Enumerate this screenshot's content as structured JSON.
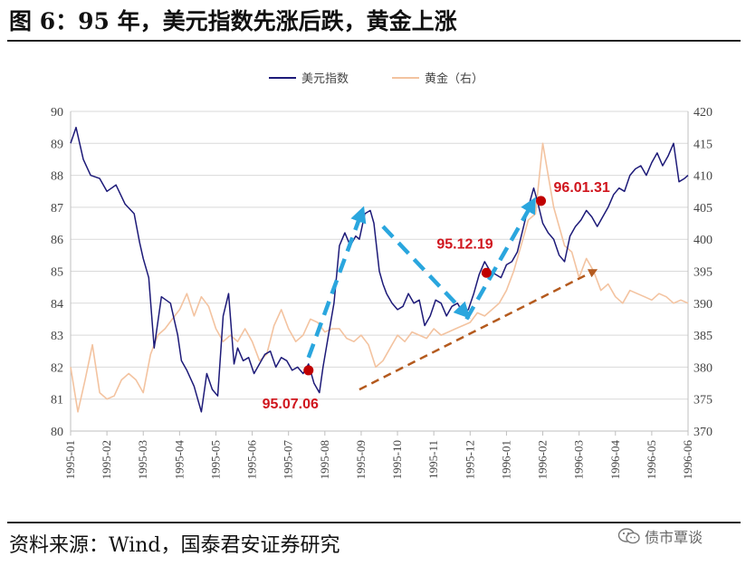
{
  "header": {
    "title": "图 6：95 年，美元指数先涨后跌，黄金上涨"
  },
  "footer": {
    "source": "资料来源：Wind，国泰君安证券研究",
    "badge": "债市覃谈"
  },
  "colors": {
    "usd": "#1d1a78",
    "gold": "#f3c3a0",
    "arrow_up": "#2aa6de",
    "arrow_trend": "#b45a1e",
    "marker": "#c00000",
    "annotation": "#d0161e"
  },
  "icons": {
    "badge_icon": "wechat-icon"
  },
  "chart_data": {
    "type": "line",
    "title": "",
    "xlabel": "",
    "ylabel": "",
    "ylim": [
      80,
      90
    ],
    "y2lim": [
      370,
      420
    ],
    "yticks": [
      "80",
      "81",
      "82",
      "83",
      "84",
      "85",
      "86",
      "87",
      "88",
      "89",
      "90"
    ],
    "y2ticks": [
      "370",
      "375",
      "380",
      "385",
      "390",
      "395",
      "400",
      "405",
      "410",
      "415",
      "420"
    ],
    "x_ticks": [
      "1995-01",
      "1995-02",
      "1995-03",
      "1995-04",
      "1995-05",
      "1995-06",
      "1995-07",
      "1995-08",
      "1995-09",
      "1995-10",
      "1995-11",
      "1995-12",
      "1996-01",
      "1996-02",
      "1996-03",
      "1996-04",
      "1996-05",
      "1996-06"
    ],
    "legend": {
      "position": "top-center",
      "entries": [
        "美元指数",
        "黄金（右）"
      ]
    },
    "grid": true,
    "series": [
      {
        "name": "美元指数",
        "axis": "left",
        "x": [
          0,
          0.15,
          0.35,
          0.55,
          0.8,
          1.0,
          1.25,
          1.5,
          1.75,
          1.9,
          2.0,
          2.15,
          2.3,
          2.5,
          2.75,
          2.95,
          3.05,
          3.2,
          3.4,
          3.6,
          3.75,
          3.9,
          4.05,
          4.2,
          4.35,
          4.5,
          4.6,
          4.75,
          4.9,
          5.05,
          5.2,
          5.35,
          5.5,
          5.65,
          5.8,
          5.95,
          6.1,
          6.25,
          6.4,
          6.55,
          6.7,
          6.85,
          6.95,
          7.1,
          7.25,
          7.4,
          7.55,
          7.7,
          7.85,
          7.95,
          8.1,
          8.25,
          8.35,
          8.5,
          8.6,
          8.7,
          8.85,
          9.0,
          9.15,
          9.3,
          9.45,
          9.6,
          9.75,
          9.9,
          10.05,
          10.2,
          10.35,
          10.5,
          10.65,
          10.8,
          10.95,
          11.1,
          11.25,
          11.4,
          11.55,
          11.7,
          11.85,
          12.0,
          12.15,
          12.3,
          12.45,
          12.6,
          12.75,
          12.85,
          13.0,
          13.15,
          13.3,
          13.45,
          13.6,
          13.75,
          13.9,
          14.05,
          14.2,
          14.35,
          14.5,
          14.65,
          14.8,
          14.95,
          15.1,
          15.25,
          15.4,
          15.55,
          15.7,
          15.85,
          16.0,
          16.15,
          16.3,
          16.45,
          16.6,
          16.75,
          16.9,
          17.0
        ],
        "values": [
          89.0,
          89.5,
          88.5,
          88.0,
          87.9,
          87.5,
          87.7,
          87.1,
          86.8,
          85.9,
          85.4,
          84.8,
          82.6,
          84.2,
          84.0,
          83.0,
          82.2,
          81.9,
          81.4,
          80.6,
          81.8,
          81.3,
          81.1,
          83.6,
          84.3,
          82.1,
          82.6,
          82.2,
          82.3,
          81.8,
          82.1,
          82.4,
          82.5,
          82.0,
          82.3,
          82.2,
          81.9,
          82.0,
          81.8,
          82.1,
          81.5,
          81.2,
          82.0,
          83.0,
          84.0,
          85.8,
          86.2,
          85.8,
          86.1,
          86.0,
          86.8,
          86.9,
          86.5,
          85.0,
          84.6,
          84.3,
          84.0,
          83.8,
          83.9,
          84.3,
          84.0,
          84.1,
          83.3,
          83.6,
          84.1,
          84.0,
          83.6,
          83.9,
          84.0,
          83.7,
          83.8,
          84.3,
          84.9,
          85.3,
          85.0,
          84.9,
          84.8,
          85.2,
          85.3,
          85.6,
          86.3,
          87.0,
          87.6,
          87.2,
          86.5,
          86.2,
          86.0,
          85.5,
          85.3,
          86.1,
          86.4,
          86.6,
          86.9,
          86.7,
          86.4,
          86.7,
          87.0,
          87.4,
          87.6,
          87.5,
          88.0,
          88.2,
          88.3,
          88.0,
          88.4,
          88.7,
          88.3,
          88.6,
          89.0,
          87.8,
          87.9,
          88.0
        ]
      },
      {
        "name": "黄金（右）",
        "axis": "right",
        "x": [
          0,
          0.2,
          0.4,
          0.6,
          0.8,
          1.0,
          1.2,
          1.4,
          1.6,
          1.8,
          2.0,
          2.2,
          2.4,
          2.6,
          2.8,
          3.0,
          3.2,
          3.4,
          3.6,
          3.8,
          4.0,
          4.2,
          4.4,
          4.6,
          4.8,
          5.0,
          5.2,
          5.4,
          5.6,
          5.8,
          6.0,
          6.2,
          6.4,
          6.6,
          6.8,
          7.0,
          7.2,
          7.4,
          7.6,
          7.8,
          8.0,
          8.2,
          8.4,
          8.6,
          8.8,
          9.0,
          9.2,
          9.4,
          9.6,
          9.8,
          10.0,
          10.2,
          10.4,
          10.6,
          10.8,
          11.0,
          11.2,
          11.4,
          11.6,
          11.8,
          12.0,
          12.2,
          12.4,
          12.6,
          12.8,
          13.0,
          13.15,
          13.3,
          13.45,
          13.6,
          13.8,
          14.0,
          14.2,
          14.4,
          14.6,
          14.8,
          15.0,
          15.2,
          15.4,
          15.6,
          15.8,
          16.0,
          16.2,
          16.4,
          16.6,
          16.8,
          17.0
        ],
        "values": [
          380.0,
          373.0,
          378.0,
          383.5,
          376.0,
          375.0,
          375.5,
          378.0,
          379.0,
          378.0,
          376.0,
          382.0,
          385.0,
          386.0,
          387.5,
          389.0,
          391.5,
          388.0,
          391.0,
          389.5,
          386.0,
          384.0,
          385.0,
          384.0,
          386.0,
          384.0,
          381.0,
          382.0,
          386.5,
          389.0,
          386.0,
          384.0,
          385.0,
          387.5,
          387.0,
          385.5,
          386.0,
          386.0,
          384.5,
          384.0,
          385.0,
          383.5,
          380.0,
          381.0,
          383.0,
          385.0,
          384.0,
          385.5,
          385.0,
          384.5,
          386.0,
          385.0,
          385.5,
          386.0,
          386.5,
          387.0,
          388.5,
          388.0,
          389.0,
          390.0,
          392.0,
          395.0,
          399.0,
          403.0,
          404.0,
          415.0,
          410.0,
          405.0,
          402.0,
          399.0,
          398.0,
          394.0,
          397.0,
          395.0,
          392.0,
          393.0,
          391.0,
          390.0,
          392.0,
          391.5,
          391.0,
          390.5,
          391.5,
          391.0,
          390.0,
          390.5,
          390.0
        ]
      }
    ],
    "annotations": [
      {
        "label": "95.07.06",
        "x": 6.55,
        "y": 81.9
      },
      {
        "label": "95.12.19",
        "x": 11.45,
        "y": 84.95
      },
      {
        "label": "96.01.31",
        "x": 12.95,
        "y": 87.2
      }
    ]
  }
}
